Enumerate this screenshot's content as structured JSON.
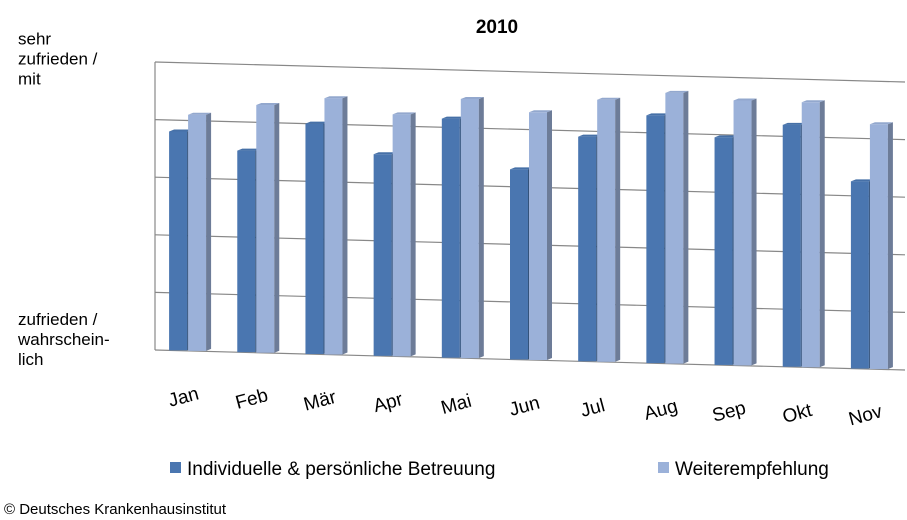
{
  "chart_data": {
    "type": "bar",
    "title": "2010",
    "categories": [
      "Jan",
      "Feb",
      "Mär",
      "Apr",
      "Mai",
      "Jun",
      "Jul",
      "Aug",
      "Sep",
      "Okt",
      "Nov"
    ],
    "series": [
      {
        "name": "Individuelle & persönliche Betreuung",
        "color": "#4a76b0",
        "values": [
          3.8,
          3.5,
          4.0,
          3.5,
          4.15,
          3.3,
          3.9,
          4.3,
          3.95,
          4.2,
          3.25
        ]
      },
      {
        "name": "Weiterempfehlung",
        "color": "#9bb1d9",
        "values": [
          4.1,
          4.3,
          4.45,
          4.2,
          4.5,
          4.3,
          4.55,
          4.7,
          4.6,
          4.6,
          4.25
        ]
      }
    ],
    "ylim": [
      0,
      5
    ],
    "yticks": [
      {
        "value": 0,
        "label": "zufrieden / wahrschein-lich"
      },
      {
        "value": 4,
        "label": "sehr zufrieden / mit Sicherheit"
      }
    ],
    "gridlines": [
      0,
      1,
      2,
      3,
      4,
      5
    ],
    "legend": "bottom",
    "source": "© Deutsches Krankenhausinstitut"
  }
}
